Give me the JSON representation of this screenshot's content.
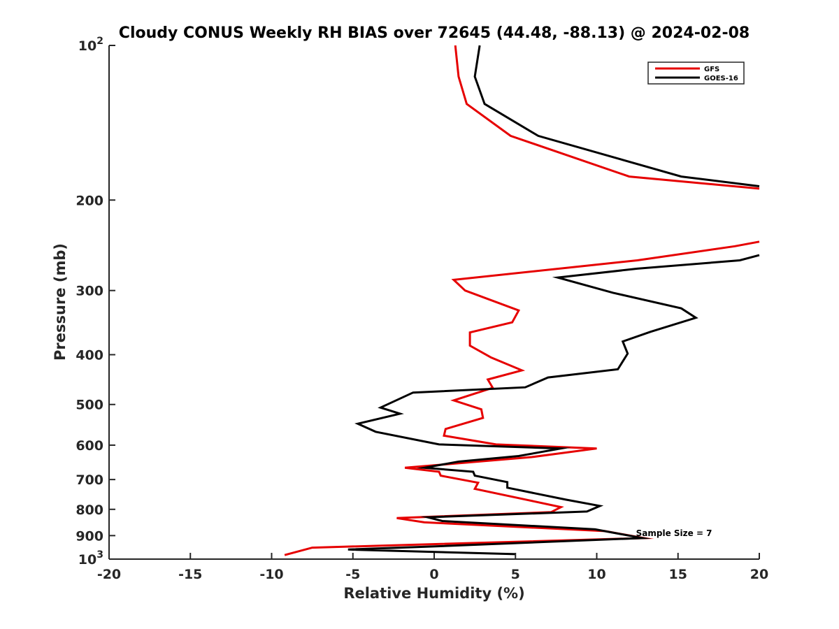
{
  "chart_data": {
    "type": "line",
    "title": "Cloudy CONUS Weekly RH BIAS over 72645 (44.48, -88.13) @ 2024-02-08",
    "xlabel": "Relative Humidity (%)",
    "ylabel": "Pressure (mb)",
    "xlim": [
      -20,
      20
    ],
    "ylim": [
      100,
      1000
    ],
    "y_scale": "log",
    "y_reversed": true,
    "xticks": [
      -20,
      -15,
      -10,
      -5,
      0,
      5,
      10,
      15,
      20
    ],
    "yticks": [
      {
        "value": 100,
        "label": "10",
        "sup": "2"
      },
      {
        "value": 200,
        "label": "200",
        "sup": ""
      },
      {
        "value": 300,
        "label": "300",
        "sup": ""
      },
      {
        "value": 400,
        "label": "400",
        "sup": ""
      },
      {
        "value": 500,
        "label": "500",
        "sup": ""
      },
      {
        "value": 600,
        "label": "600",
        "sup": ""
      },
      {
        "value": 700,
        "label": "700",
        "sup": ""
      },
      {
        "value": 800,
        "label": "800",
        "sup": ""
      },
      {
        "value": 900,
        "label": "900",
        "sup": ""
      },
      {
        "value": 1000,
        "label": "10",
        "sup": "3"
      }
    ],
    "legend_position": "top-right",
    "annotation": {
      "text": "Sample Size = 7",
      "x": 12.5,
      "y": 905
    },
    "series": [
      {
        "name": "GFS",
        "color": "#e60000",
        "segments": [
          [
            [
              1.3,
              100
            ],
            [
              1.5,
              115
            ],
            [
              2.0,
              130
            ],
            [
              4.7,
              150
            ],
            [
              12.0,
              180
            ],
            [
              20.0,
              190
            ]
          ],
          [
            [
              20.0,
              241
            ],
            [
              18.5,
              246
            ],
            [
              12.5,
              262
            ],
            [
              1.2,
              286
            ],
            [
              1.9,
              300
            ],
            [
              5.2,
              328
            ],
            [
              4.8,
              346
            ],
            [
              2.2,
              362
            ],
            [
              2.2,
              384
            ],
            [
              3.5,
              405
            ],
            [
              5.4,
              429
            ],
            [
              3.3,
              447
            ],
            [
              3.6,
              464
            ],
            [
              1.2,
              491
            ],
            [
              2.9,
              511
            ],
            [
              3.0,
              531
            ],
            [
              0.7,
              558
            ],
            [
              0.6,
              575
            ],
            [
              3.8,
              598
            ],
            [
              10.0,
              609
            ],
            [
              6.0,
              633
            ],
            [
              -1.8,
              664
            ],
            [
              0.3,
              676
            ],
            [
              0.4,
              688
            ],
            [
              2.7,
              710
            ],
            [
              2.5,
              730
            ],
            [
              5.8,
              768
            ],
            [
              7.8,
              792
            ],
            [
              7.2,
              810
            ],
            [
              -2.3,
              832
            ],
            [
              -0.6,
              848
            ],
            [
              10.5,
              882
            ],
            [
              12.9,
              910
            ],
            [
              -7.5,
              950
            ],
            [
              -9.2,
              982
            ]
          ]
        ]
      },
      {
        "name": "GOES-16",
        "color": "#000000",
        "segments": [
          [
            [
              2.8,
              100
            ],
            [
              2.5,
              115
            ],
            [
              3.1,
              130
            ],
            [
              6.4,
              150
            ],
            [
              15.2,
              180
            ],
            [
              20.0,
              188
            ]
          ],
          [
            [
              20.0,
              256
            ],
            [
              18.8,
              262
            ],
            [
              12.5,
              272
            ],
            [
              7.6,
              283
            ],
            [
              11.0,
              303
            ],
            [
              15.2,
              325
            ],
            [
              16.1,
              339
            ],
            [
              13.3,
              361
            ],
            [
              11.6,
              377
            ],
            [
              11.9,
              398
            ],
            [
              11.3,
              427
            ],
            [
              7.0,
              443
            ],
            [
              5.6,
              463
            ],
            [
              -1.3,
              474
            ],
            [
              -3.3,
              507
            ],
            [
              -2.1,
              521
            ],
            [
              -4.7,
              545
            ],
            [
              -3.6,
              565
            ],
            [
              0.3,
              598
            ],
            [
              7.8,
              609
            ],
            [
              5.2,
              630
            ],
            [
              1.5,
              646
            ],
            [
              -0.6,
              664
            ],
            [
              2.4,
              676
            ],
            [
              2.5,
              688
            ],
            [
              4.5,
              708
            ],
            [
              4.5,
              726
            ],
            [
              8.1,
              766
            ],
            [
              10.2,
              788
            ],
            [
              9.4,
              808
            ],
            [
              -0.4,
              829
            ],
            [
              0.5,
              843
            ],
            [
              9.9,
              875
            ],
            [
              12.8,
              910
            ],
            [
              -0.5,
              946
            ],
            [
              -5.3,
              958
            ],
            [
              5.0,
              978
            ]
          ]
        ]
      }
    ]
  }
}
